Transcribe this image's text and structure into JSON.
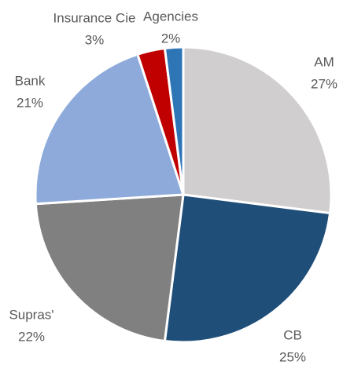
{
  "chart_data": {
    "type": "pie",
    "categories": [
      "AM",
      "CB",
      "Supras'",
      "Bank",
      "Insurance Cie",
      "Agencies"
    ],
    "values": [
      27,
      25,
      22,
      21,
      3,
      2
    ],
    "value_labels": [
      "27%",
      "25%",
      "22%",
      "21%",
      "3%",
      "2%"
    ],
    "colors": [
      "#d0cece",
      "#1f4e79",
      "#808080",
      "#8eaadb",
      "#c00000",
      "#2e75b6"
    ]
  }
}
